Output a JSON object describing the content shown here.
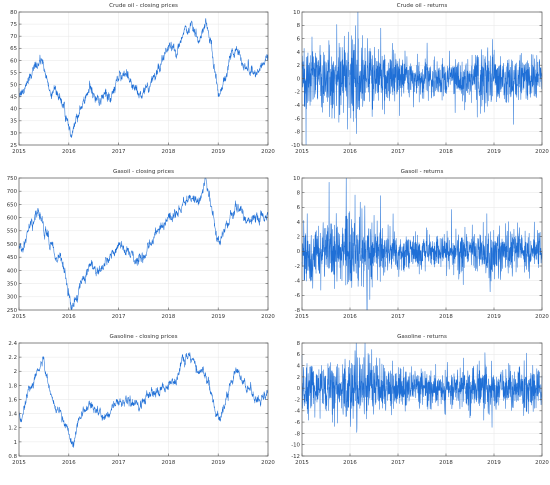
{
  "colors": {
    "series": "#1f6fd6",
    "axis": "#555555",
    "grid": "#e6e6e6",
    "text": "#333333"
  },
  "chart_data": [
    {
      "type": "line",
      "title": "Crude oil - closing prices",
      "xlim": [
        2015,
        2020
      ],
      "ylim": [
        25,
        80
      ],
      "xticks": [
        2015,
        2016,
        2017,
        2018,
        2019,
        2020
      ],
      "yticks": [
        25,
        30,
        35,
        40,
        45,
        50,
        55,
        60,
        65,
        70,
        75,
        80
      ],
      "noise": 1.3,
      "anchors": [
        [
          2015.0,
          48
        ],
        [
          2015.05,
          46
        ],
        [
          2015.15,
          50
        ],
        [
          2015.3,
          57
        ],
        [
          2015.45,
          60
        ],
        [
          2015.55,
          53
        ],
        [
          2015.65,
          46
        ],
        [
          2015.75,
          48
        ],
        [
          2015.85,
          44
        ],
        [
          2015.95,
          37
        ],
        [
          2016.05,
          28
        ],
        [
          2016.12,
          33
        ],
        [
          2016.25,
          40
        ],
        [
          2016.4,
          48
        ],
        [
          2016.5,
          47
        ],
        [
          2016.6,
          43
        ],
        [
          2016.75,
          47
        ],
        [
          2016.85,
          44
        ],
        [
          2016.95,
          52
        ],
        [
          2017.1,
          54
        ],
        [
          2017.2,
          52
        ],
        [
          2017.35,
          48
        ],
        [
          2017.45,
          46
        ],
        [
          2017.55,
          48
        ],
        [
          2017.7,
          52
        ],
        [
          2017.85,
          58
        ],
        [
          2018.0,
          66
        ],
        [
          2018.15,
          64
        ],
        [
          2018.35,
          72
        ],
        [
          2018.5,
          74
        ],
        [
          2018.6,
          68
        ],
        [
          2018.72,
          73
        ],
        [
          2018.78,
          76
        ],
        [
          2018.9,
          60
        ],
        [
          2018.98,
          50
        ],
        [
          2019.02,
          45
        ],
        [
          2019.15,
          55
        ],
        [
          2019.3,
          63
        ],
        [
          2019.4,
          66
        ],
        [
          2019.5,
          58
        ],
        [
          2019.6,
          56
        ],
        [
          2019.7,
          55
        ],
        [
          2019.8,
          55
        ],
        [
          2019.9,
          58
        ],
        [
          2020.0,
          61
        ]
      ]
    },
    {
      "type": "line",
      "title": "Crude oil - returns",
      "xlim": [
        2015,
        2020
      ],
      "ylim": [
        -10,
        10
      ],
      "xticks": [
        2015,
        2016,
        2017,
        2018,
        2019,
        2020
      ],
      "yticks": [
        -10,
        -8,
        -6,
        -4,
        -2,
        0,
        2,
        4,
        6,
        8,
        10
      ],
      "volatility": [
        [
          2015.0,
          2.6
        ],
        [
          2015.4,
          2.4
        ],
        [
          2015.8,
          3.0
        ],
        [
          2016.1,
          3.6
        ],
        [
          2016.4,
          2.6
        ],
        [
          2016.8,
          2.2
        ],
        [
          2017.2,
          1.4
        ],
        [
          2017.6,
          1.3
        ],
        [
          2018.0,
          1.4
        ],
        [
          2018.5,
          1.5
        ],
        [
          2018.9,
          2.4
        ],
        [
          2019.1,
          2.0
        ],
        [
          2019.5,
          1.8
        ],
        [
          2019.8,
          1.6
        ],
        [
          2020.0,
          1.8
        ]
      ]
    },
    {
      "type": "line",
      "title": "Gasoil - closing prices",
      "xlim": [
        2015,
        2020
      ],
      "ylim": [
        250,
        750
      ],
      "xticks": [
        2015,
        2016,
        2017,
        2018,
        2019,
        2020
      ],
      "yticks": [
        250,
        300,
        350,
        400,
        450,
        500,
        550,
        600,
        650,
        700,
        750
      ],
      "noise": 12,
      "anchors": [
        [
          2015.0,
          500
        ],
        [
          2015.08,
          470
        ],
        [
          2015.2,
          560
        ],
        [
          2015.35,
          610
        ],
        [
          2015.45,
          600
        ],
        [
          2015.55,
          540
        ],
        [
          2015.7,
          470
        ],
        [
          2015.85,
          430
        ],
        [
          2015.95,
          360
        ],
        [
          2016.05,
          270
        ],
        [
          2016.15,
          300
        ],
        [
          2016.3,
          370
        ],
        [
          2016.45,
          430
        ],
        [
          2016.55,
          400
        ],
        [
          2016.7,
          420
        ],
        [
          2016.85,
          460
        ],
        [
          2017.0,
          490
        ],
        [
          2017.15,
          480
        ],
        [
          2017.3,
          440
        ],
        [
          2017.5,
          450
        ],
        [
          2017.65,
          500
        ],
        [
          2017.8,
          540
        ],
        [
          2018.0,
          600
        ],
        [
          2018.2,
          610
        ],
        [
          2018.35,
          660
        ],
        [
          2018.5,
          680
        ],
        [
          2018.62,
          650
        ],
        [
          2018.75,
          740
        ],
        [
          2018.85,
          660
        ],
        [
          2018.98,
          520
        ],
        [
          2019.05,
          500
        ],
        [
          2019.2,
          580
        ],
        [
          2019.35,
          640
        ],
        [
          2019.45,
          630
        ],
        [
          2019.55,
          580
        ],
        [
          2019.7,
          590
        ],
        [
          2019.85,
          600
        ],
        [
          2020.0,
          620
        ]
      ]
    },
    {
      "type": "line",
      "title": "Gasoil - returns",
      "xlim": [
        2015,
        2020
      ],
      "ylim": [
        -8,
        10
      ],
      "xticks": [
        2015,
        2016,
        2017,
        2018,
        2019,
        2020
      ],
      "yticks": [
        -8,
        -6,
        -4,
        -2,
        0,
        2,
        4,
        6,
        8,
        10
      ],
      "volatility": [
        [
          2015.0,
          2.2
        ],
        [
          2015.4,
          2.0
        ],
        [
          2015.8,
          2.4
        ],
        [
          2016.1,
          3.2
        ],
        [
          2016.4,
          2.2
        ],
        [
          2016.8,
          1.8
        ],
        [
          2017.2,
          1.2
        ],
        [
          2017.6,
          1.1
        ],
        [
          2018.0,
          1.2
        ],
        [
          2018.5,
          1.3
        ],
        [
          2018.9,
          2.0
        ],
        [
          2019.1,
          1.6
        ],
        [
          2019.5,
          1.4
        ],
        [
          2019.8,
          1.3
        ],
        [
          2020.0,
          1.4
        ]
      ]
    },
    {
      "type": "line",
      "title": "Gasoline - closing prices",
      "xlim": [
        2015,
        2020
      ],
      "ylim": [
        0.8,
        2.4
      ],
      "xticks": [
        2015,
        2016,
        2017,
        2018,
        2019,
        2020
      ],
      "yticks": [
        0.8,
        1.0,
        1.2,
        1.4,
        1.6,
        1.8,
        2.0,
        2.2,
        2.4
      ],
      "noise": 0.04,
      "anchors": [
        [
          2015.0,
          1.4
        ],
        [
          2015.05,
          1.28
        ],
        [
          2015.15,
          1.65
        ],
        [
          2015.3,
          1.85
        ],
        [
          2015.4,
          2.05
        ],
        [
          2015.5,
          2.1
        ],
        [
          2015.58,
          1.85
        ],
        [
          2015.7,
          1.55
        ],
        [
          2015.8,
          1.4
        ],
        [
          2015.9,
          1.3
        ],
        [
          2016.0,
          1.1
        ],
        [
          2016.1,
          0.95
        ],
        [
          2016.2,
          1.3
        ],
        [
          2016.35,
          1.5
        ],
        [
          2016.45,
          1.55
        ],
        [
          2016.55,
          1.4
        ],
        [
          2016.7,
          1.35
        ],
        [
          2016.8,
          1.4
        ],
        [
          2016.9,
          1.5
        ],
        [
          2017.0,
          1.55
        ],
        [
          2017.15,
          1.6
        ],
        [
          2017.3,
          1.55
        ],
        [
          2017.45,
          1.5
        ],
        [
          2017.6,
          1.65
        ],
        [
          2017.75,
          1.7
        ],
        [
          2017.9,
          1.75
        ],
        [
          2018.0,
          1.8
        ],
        [
          2018.15,
          1.9
        ],
        [
          2018.3,
          2.1
        ],
        [
          2018.4,
          2.25
        ],
        [
          2018.5,
          2.15
        ],
        [
          2018.6,
          2.05
        ],
        [
          2018.75,
          1.95
        ],
        [
          2018.85,
          1.7
        ],
        [
          2018.95,
          1.35
        ],
        [
          2019.02,
          1.28
        ],
        [
          2019.15,
          1.55
        ],
        [
          2019.25,
          1.85
        ],
        [
          2019.35,
          2.0
        ],
        [
          2019.45,
          1.95
        ],
        [
          2019.55,
          1.75
        ],
        [
          2019.7,
          1.65
        ],
        [
          2019.85,
          1.6
        ],
        [
          2020.0,
          1.75
        ]
      ]
    },
    {
      "type": "line",
      "title": "Gasoline - returns",
      "xlim": [
        2015,
        2020
      ],
      "ylim": [
        -12,
        8
      ],
      "xticks": [
        2015,
        2016,
        2017,
        2018,
        2019,
        2020
      ],
      "yticks": [
        -12,
        -10,
        -8,
        -6,
        -4,
        -2,
        0,
        2,
        4,
        6,
        8
      ],
      "volatility": [
        [
          2015.0,
          2.4
        ],
        [
          2015.4,
          2.2
        ],
        [
          2015.8,
          2.8
        ],
        [
          2016.1,
          3.4
        ],
        [
          2016.4,
          2.6
        ],
        [
          2016.8,
          2.2
        ],
        [
          2017.2,
          1.7
        ],
        [
          2017.6,
          1.6
        ],
        [
          2018.0,
          1.5
        ],
        [
          2018.5,
          1.6
        ],
        [
          2018.9,
          2.2
        ],
        [
          2019.1,
          2.0
        ],
        [
          2019.5,
          1.8
        ],
        [
          2019.8,
          1.7
        ],
        [
          2020.0,
          1.8
        ]
      ]
    }
  ]
}
